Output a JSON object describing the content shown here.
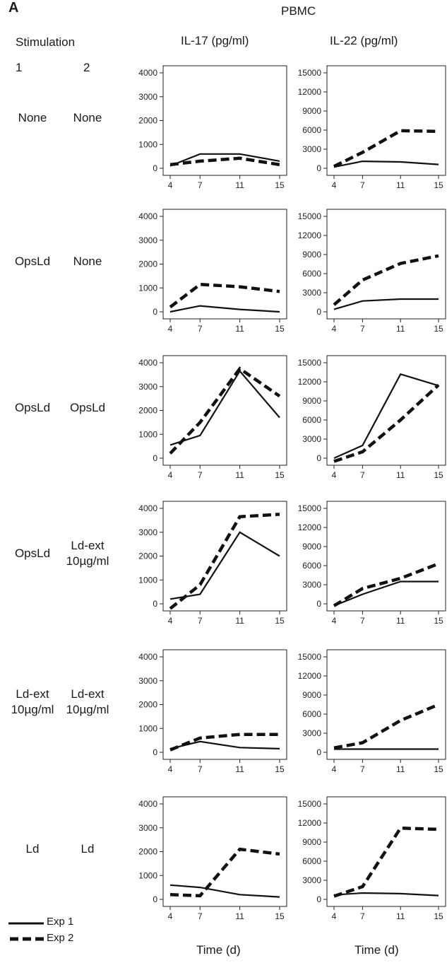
{
  "panel_letter": "A",
  "cell_type": "PBMC",
  "stimulation_header": "Stimulation",
  "stim_col_1": "1",
  "stim_col_2": "2",
  "col_il17": "IL-17 (pg/ml)",
  "col_il22": "IL-22 (pg/ml)",
  "rows": [
    {
      "stim1": [
        "None"
      ],
      "stim2": [
        "None"
      ]
    },
    {
      "stim1": [
        "OpsLd"
      ],
      "stim2": [
        "None"
      ]
    },
    {
      "stim1": [
        "OpsLd"
      ],
      "stim2": [
        "OpsLd"
      ]
    },
    {
      "stim1": [
        "OpsLd"
      ],
      "stim2": [
        "Ld-ext",
        "10µg/ml"
      ]
    },
    {
      "stim1": [
        "Ld-ext",
        "10µg/ml"
      ],
      "stim2": [
        "Ld-ext",
        "10µg/ml"
      ]
    },
    {
      "stim1": [
        "Ld"
      ],
      "stim2": [
        "Ld"
      ]
    }
  ],
  "legend": {
    "exp1": "Exp 1",
    "exp2": "Exp 2"
  },
  "xlabel": "Time (d)",
  "chart_data": [
    {
      "type": "line",
      "row": 1,
      "cytokine": "IL-17",
      "x": [
        4,
        7,
        11,
        15
      ],
      "ylim": [
        0,
        4000
      ],
      "yticks": [
        0,
        1000,
        2000,
        3000,
        4000
      ],
      "series": [
        {
          "name": "Exp 1",
          "values": [
            100,
            600,
            600,
            300
          ]
        },
        {
          "name": "Exp 2",
          "values": [
            150,
            300,
            420,
            150
          ]
        }
      ]
    },
    {
      "type": "line",
      "row": 1,
      "cytokine": "IL-22",
      "x": [
        4,
        7,
        11,
        15
      ],
      "ylim": [
        0,
        15000
      ],
      "yticks": [
        0,
        3000,
        6000,
        9000,
        12000,
        15000
      ],
      "series": [
        {
          "name": "Exp 1",
          "values": [
            200,
            1100,
            1000,
            600
          ]
        },
        {
          "name": "Exp 2",
          "values": [
            300,
            2500,
            5900,
            5800
          ]
        }
      ]
    },
    {
      "type": "line",
      "row": 2,
      "cytokine": "IL-17",
      "x": [
        4,
        7,
        11,
        15
      ],
      "ylim": [
        0,
        4000
      ],
      "yticks": [
        0,
        1000,
        2000,
        3000,
        4000
      ],
      "series": [
        {
          "name": "Exp 1",
          "values": [
            0,
            250,
            100,
            0
          ]
        },
        {
          "name": "Exp 2",
          "values": [
            200,
            1150,
            1050,
            850
          ]
        }
      ]
    },
    {
      "type": "line",
      "row": 2,
      "cytokine": "IL-22",
      "x": [
        4,
        7,
        11,
        15
      ],
      "ylim": [
        0,
        15000
      ],
      "yticks": [
        0,
        3000,
        6000,
        9000,
        12000,
        15000
      ],
      "series": [
        {
          "name": "Exp 1",
          "values": [
            400,
            1700,
            2000,
            2000
          ]
        },
        {
          "name": "Exp 2",
          "values": [
            1100,
            5000,
            7600,
            8800
          ]
        }
      ]
    },
    {
      "type": "line",
      "row": 3,
      "cytokine": "IL-17",
      "x": [
        4,
        7,
        11,
        15
      ],
      "ylim": [
        0,
        4000
      ],
      "yticks": [
        0,
        1000,
        2000,
        3000,
        4000
      ],
      "series": [
        {
          "name": "Exp 1",
          "values": [
            550,
            950,
            3650,
            1700
          ]
        },
        {
          "name": "Exp 2",
          "values": [
            200,
            1500,
            3750,
            2600
          ]
        }
      ]
    },
    {
      "type": "line",
      "row": 3,
      "cytokine": "IL-22",
      "x": [
        4,
        7,
        11,
        15
      ],
      "ylim": [
        0,
        15000
      ],
      "yticks": [
        0,
        3000,
        6000,
        9000,
        12000,
        15000
      ],
      "series": [
        {
          "name": "Exp 1",
          "values": [
            0,
            2000,
            13200,
            11400
          ]
        },
        {
          "name": "Exp 2",
          "values": [
            -500,
            1000,
            6000,
            11500
          ]
        }
      ]
    },
    {
      "type": "line",
      "row": 4,
      "cytokine": "IL-17",
      "x": [
        4,
        7,
        11,
        15
      ],
      "ylim": [
        0,
        4000
      ],
      "yticks": [
        0,
        1000,
        2000,
        3000,
        4000
      ],
      "series": [
        {
          "name": "Exp 1",
          "values": [
            200,
            400,
            3000,
            2000
          ]
        },
        {
          "name": "Exp 2",
          "values": [
            -200,
            800,
            3650,
            3750
          ]
        }
      ]
    },
    {
      "type": "line",
      "row": 4,
      "cytokine": "IL-22",
      "x": [
        4,
        7,
        11,
        15
      ],
      "ylim": [
        0,
        15000
      ],
      "yticks": [
        0,
        3000,
        6000,
        9000,
        12000,
        15000
      ],
      "series": [
        {
          "name": "Exp 1",
          "values": [
            -300,
            1500,
            3500,
            3500
          ]
        },
        {
          "name": "Exp 2",
          "values": [
            -300,
            2400,
            4000,
            6300
          ]
        }
      ]
    },
    {
      "type": "line",
      "row": 5,
      "cytokine": "IL-17",
      "x": [
        4,
        7,
        11,
        15
      ],
      "ylim": [
        0,
        4000
      ],
      "yticks": [
        0,
        1000,
        2000,
        3000,
        4000
      ],
      "series": [
        {
          "name": "Exp 1",
          "values": [
            150,
            450,
            200,
            150
          ]
        },
        {
          "name": "Exp 2",
          "values": [
            100,
            600,
            750,
            750
          ]
        }
      ]
    },
    {
      "type": "line",
      "row": 5,
      "cytokine": "IL-22",
      "x": [
        4,
        7,
        11,
        15
      ],
      "ylim": [
        0,
        15000
      ],
      "yticks": [
        0,
        3000,
        6000,
        9000,
        12000,
        15000
      ],
      "series": [
        {
          "name": "Exp 1",
          "values": [
            500,
            500,
            500,
            500
          ]
        },
        {
          "name": "Exp 2",
          "values": [
            700,
            1500,
            5000,
            7500
          ]
        }
      ]
    },
    {
      "type": "line",
      "row": 6,
      "cytokine": "IL-17",
      "x": [
        4,
        7,
        11,
        15
      ],
      "ylim": [
        0,
        4000
      ],
      "yticks": [
        0,
        1000,
        2000,
        3000,
        4000
      ],
      "series": [
        {
          "name": "Exp 1",
          "values": [
            600,
            500,
            200,
            100
          ]
        },
        {
          "name": "Exp 2",
          "values": [
            200,
            150,
            2100,
            1900
          ]
        }
      ]
    },
    {
      "type": "line",
      "row": 6,
      "cytokine": "IL-22",
      "x": [
        4,
        7,
        11,
        15
      ],
      "ylim": [
        0,
        15000
      ],
      "yticks": [
        0,
        3000,
        6000,
        9000,
        12000,
        15000
      ],
      "series": [
        {
          "name": "Exp 1",
          "values": [
            700,
            1000,
            900,
            600
          ]
        },
        {
          "name": "Exp 2",
          "values": [
            500,
            2000,
            11200,
            11000
          ]
        }
      ]
    }
  ]
}
